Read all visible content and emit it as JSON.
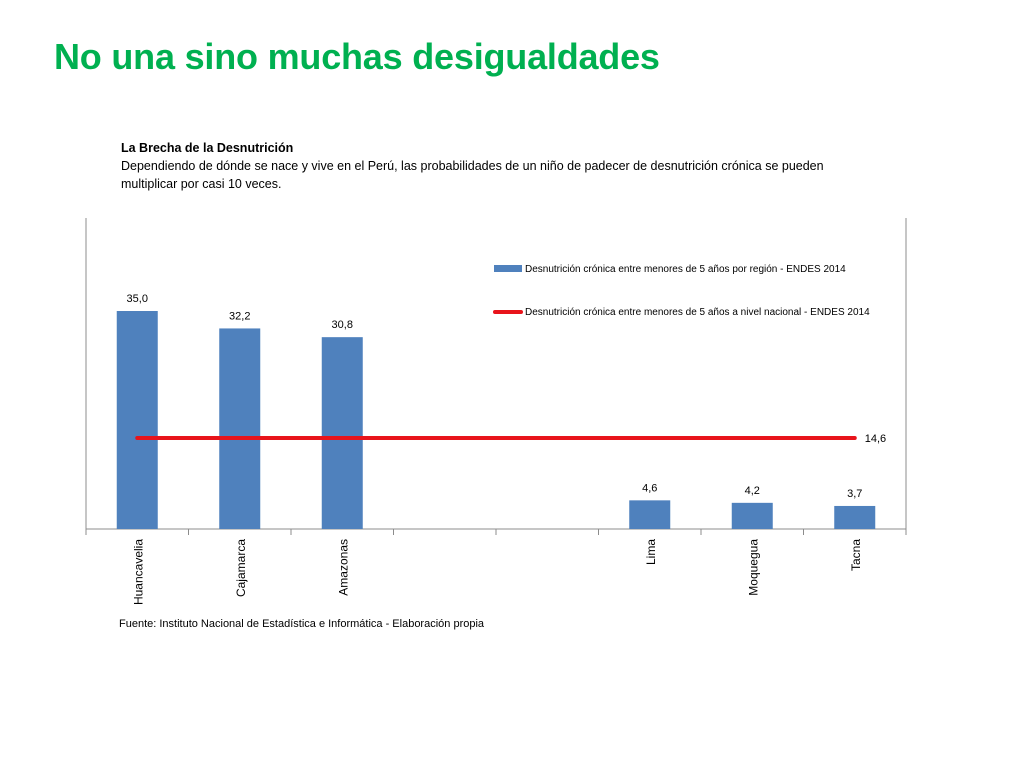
{
  "slide": {
    "title": "No una sino muchas desigualdades"
  },
  "intro": {
    "heading": "La Brecha de la Desnutrición",
    "text": "Dependiendo de dónde se nace y vive en el Perú, las probabilidades de  un niño de padecer de desnutrición  crónica se pueden multiplicar por casi 10 veces."
  },
  "source": "Fuente: Instituto Nacional de Estadística e Informática - Elaboración propia",
  "colors": {
    "title": "#00b050",
    "bar": "#4f81bd",
    "line": "#e8141b"
  },
  "chart_data": {
    "type": "bar",
    "categories": [
      "Huancavelia",
      "Cajamarca",
      "Amazonas",
      "",
      "",
      "Lima",
      "Moquegua",
      "Tacna"
    ],
    "series": [
      {
        "name": "Desnutrición crónica entre menores de 5 años por región - ENDES 2014",
        "type": "bar",
        "values": [
          35.0,
          32.2,
          30.8,
          null,
          null,
          4.6,
          4.2,
          3.7
        ],
        "labels": [
          "35,0",
          "32,2",
          "30,8",
          "",
          "",
          "4,6",
          "4,2",
          "3,7"
        ]
      },
      {
        "name": "Desnutrición crónica entre menores de 5 años a nivel nacional - ENDES 2014",
        "type": "line",
        "value": 14.6,
        "label": "14,6"
      }
    ],
    "ylim": [
      0,
      40
    ],
    "grid": false,
    "legend": "top-right"
  }
}
